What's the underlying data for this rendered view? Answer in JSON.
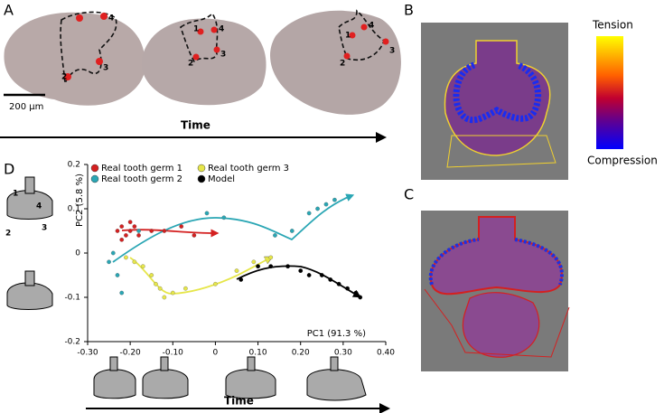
{
  "figure": {
    "panels": [
      "A",
      "B",
      "C",
      "D"
    ],
    "scale_bar": "200 µm",
    "time_label": "Time",
    "colorbar_top": "Tension",
    "colorbar_bottom": "Compression",
    "landmarks": [
      "1",
      "2",
      "3",
      "4"
    ]
  },
  "chart_data": {
    "type": "scatter",
    "x_label": "PC1 (91.3 %)",
    "y_label": "PC2 (5.8 %)",
    "xlim": [
      -0.3,
      0.4
    ],
    "xticks": [
      {
        "value": -0.3,
        "label": "-0.30"
      },
      {
        "value": -0.2,
        "label": "-0.20"
      },
      {
        "value": -0.1,
        "label": "-0.10"
      },
      {
        "value": 0,
        "label": "0"
      },
      {
        "value": 0.1,
        "label": "0.10"
      },
      {
        "value": 0.2,
        "label": "0.20"
      },
      {
        "value": 0.3,
        "label": "0.30"
      },
      {
        "value": 0.4,
        "label": "0.40"
      }
    ],
    "ylim": [
      -0.2,
      0.2
    ],
    "yticks": [
      -0.2,
      -0.1,
      0,
      0.1,
      0.2
    ],
    "series": [
      {
        "name": "Real tooth germ 1",
        "color": "#d42020",
        "x": [
          -0.23,
          -0.22,
          -0.21,
          -0.2,
          -0.19,
          -0.22,
          -0.2,
          -0.18,
          -0.15,
          -0.12,
          -0.08,
          -0.05
        ],
        "y": [
          0.05,
          0.06,
          0.04,
          0.05,
          0.06,
          0.03,
          0.07,
          0.04,
          0.05,
          0.05,
          0.06,
          0.04
        ]
      },
      {
        "name": "Real tooth germ 2",
        "color": "#2aa6b4",
        "x": [
          -0.25,
          -0.24,
          -0.23,
          -0.22,
          -0.18,
          -0.02,
          0.02,
          0.14,
          0.18,
          0.22,
          0.24,
          0.26,
          0.28
        ],
        "y": [
          -0.02,
          0.0,
          -0.05,
          -0.09,
          0.05,
          0.09,
          0.08,
          0.04,
          0.05,
          0.09,
          0.1,
          0.11,
          0.12
        ]
      },
      {
        "name": "Real tooth germ 3",
        "color": "#e6e64a",
        "x": [
          -0.21,
          -0.19,
          -0.17,
          -0.15,
          -0.14,
          -0.13,
          -0.12,
          -0.1,
          -0.07,
          0.0,
          0.05,
          0.09,
          0.13
        ],
        "y": [
          -0.01,
          -0.02,
          -0.03,
          -0.05,
          -0.07,
          -0.08,
          -0.1,
          -0.09,
          -0.08,
          -0.07,
          -0.04,
          -0.02,
          -0.01
        ]
      },
      {
        "name": "Model",
        "color": "#000000",
        "x": [
          0.06,
          0.1,
          0.13,
          0.17,
          0.2,
          0.22,
          0.25,
          0.27,
          0.29,
          0.31,
          0.33,
          0.34
        ],
        "y": [
          -0.06,
          -0.03,
          -0.03,
          -0.03,
          -0.04,
          -0.05,
          -0.05,
          -0.06,
          -0.07,
          -0.08,
          -0.09,
          -0.1
        ]
      }
    ]
  }
}
